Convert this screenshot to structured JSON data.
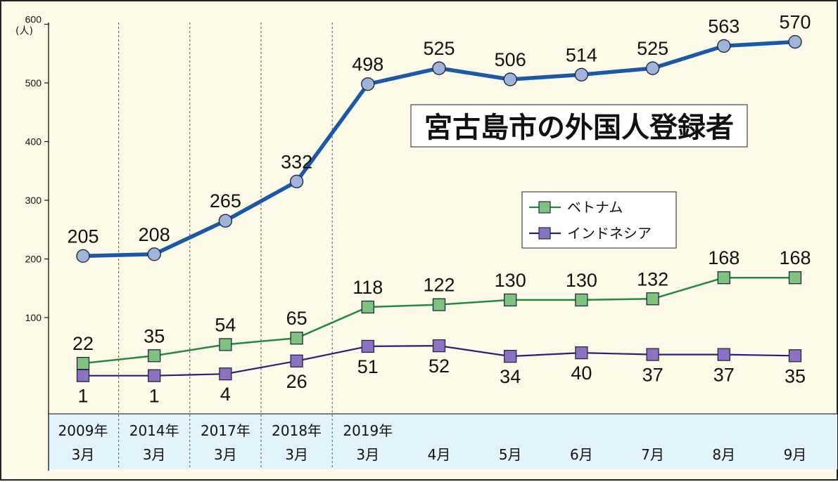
{
  "chart_data": {
    "type": "line",
    "title": "宮古島市の外国人登録者",
    "y_unit": "(人)",
    "ylim": [
      0,
      600
    ],
    "y_ticks": [
      100,
      200,
      300,
      400,
      500,
      600
    ],
    "grid": false,
    "legend_position": "right-center",
    "categories": [
      {
        "line1": "2009年",
        "line2": "3月"
      },
      {
        "line1": "2014年",
        "line2": "3月"
      },
      {
        "line1": "2017年",
        "line2": "3月"
      },
      {
        "line1": "2018年",
        "line2": "3月"
      },
      {
        "line1": "2019年",
        "line2": "3月"
      },
      {
        "line1": "",
        "line2": "4月"
      },
      {
        "line1": "",
        "line2": "5月"
      },
      {
        "line1": "",
        "line2": "6月"
      },
      {
        "line1": "",
        "line2": "7月"
      },
      {
        "line1": "",
        "line2": "8月"
      },
      {
        "line1": "",
        "line2": "9月"
      }
    ],
    "series": [
      {
        "values": [
          205,
          208,
          265,
          332,
          498,
          525,
          506,
          514,
          525,
          563,
          570
        ],
        "color": "#1a58a8",
        "marker": "circle",
        "marker_color": "#9fb4d8",
        "label_position": "above"
      },
      {
        "name": "ベトナム",
        "values": [
          22,
          35,
          54,
          65,
          118,
          122,
          130,
          130,
          132,
          168,
          168
        ],
        "color": "#1e8c3c",
        "marker": "square",
        "marker_color": "#7ec47e",
        "label_position": "above"
      },
      {
        "name": "インドネシア",
        "values": [
          1,
          1,
          4,
          26,
          51,
          52,
          34,
          40,
          37,
          37,
          35
        ],
        "color": "#2b1f78",
        "marker": "square",
        "marker_color": "#8d72c4",
        "label_position": "below"
      }
    ],
    "colors": {
      "background": "#fdfbe7",
      "category_band": "#e2f3fb",
      "divider": "#555555"
    }
  }
}
